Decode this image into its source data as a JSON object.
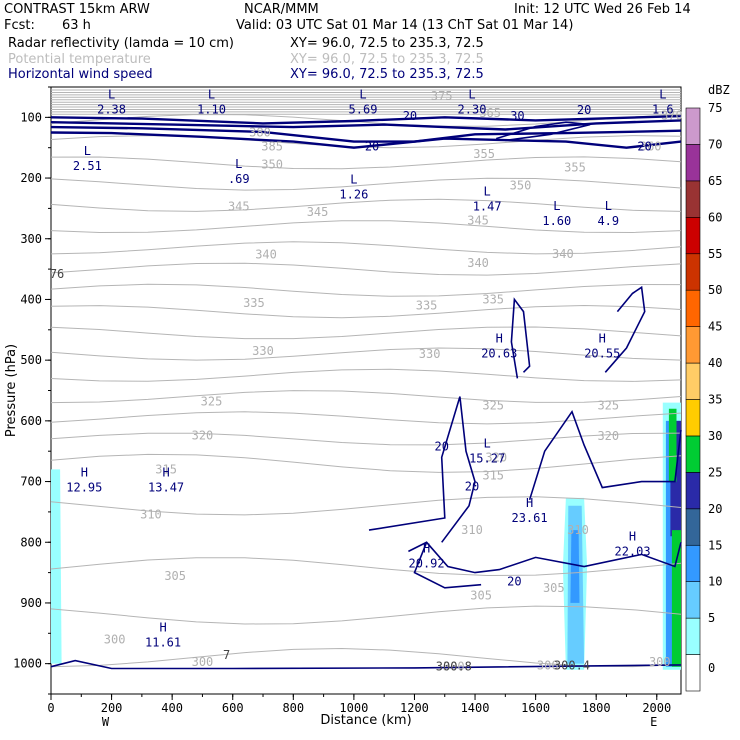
{
  "header": {
    "title": "CONTRAST 15km ARW",
    "center": "NCAR/MMM",
    "init": "Init: 12 UTC Wed 26 Feb 14",
    "fcst_label": "Fcst:",
    "fcst_value": "63 h",
    "valid": "Valid: 03 UTC Sat 01 Mar 14 (13 ChT Sat 01 Mar 14)",
    "fields": [
      {
        "name": "Radar reflectivity (lamda = 10 cm)",
        "xy": "XY=  96.0, 72.5 to 235.3, 72.5",
        "color": "#000000"
      },
      {
        "name": "Potential temperature",
        "xy": "XY=  96.0, 72.5 to 235.3, 72.5",
        "color": "#bdbdbd"
      },
      {
        "name": "Horizontal wind speed",
        "xy": "XY=  96.0, 72.5 to 235.3, 72.5",
        "color": "#00007a"
      }
    ]
  },
  "chart_data": {
    "type": "cross-section",
    "xlabel": "Distance (km)",
    "ylabel": "Pressure (hPa)",
    "xlim": [
      0,
      2080
    ],
    "ylim": [
      1050,
      50
    ],
    "x_ticks": [
      0,
      200,
      400,
      600,
      800,
      1000,
      1200,
      1400,
      1600,
      1800,
      2000
    ],
    "y_ticks": [
      100,
      200,
      300,
      400,
      500,
      600,
      700,
      800,
      900,
      1000
    ],
    "x_end_labels": {
      "left": "W",
      "right": "E"
    },
    "colorbar": {
      "unit": "dBZ",
      "levels": [
        0,
        5,
        10,
        15,
        20,
        25,
        30,
        35,
        40,
        45,
        50,
        55,
        60,
        65,
        70,
        75
      ],
      "colors": [
        "#ffffff",
        "#99ffff",
        "#66ccff",
        "#3399ff",
        "#336699",
        "#2a2aa8",
        "#00cc33",
        "#ffcc00",
        "#ffcc66",
        "#ff9933",
        "#ff6600",
        "#cc3300",
        "#cc0000",
        "#993333",
        "#993399",
        "#cc99cc"
      ]
    },
    "theta_labels": [
      {
        "v": "385",
        "x": 730,
        "p": 148
      },
      {
        "v": "350",
        "x": 730,
        "p": 178
      },
      {
        "v": "355",
        "x": 1430,
        "p": 160
      },
      {
        "v": "360",
        "x": 1980,
        "p": 148
      },
      {
        "v": "355",
        "x": 1730,
        "p": 183
      },
      {
        "v": "350",
        "x": 1550,
        "p": 212
      },
      {
        "v": "345",
        "x": 620,
        "p": 247
      },
      {
        "v": "345",
        "x": 880,
        "p": 256
      },
      {
        "v": "345",
        "x": 1410,
        "p": 270
      },
      {
        "v": "340",
        "x": 710,
        "p": 326
      },
      {
        "v": "340",
        "x": 1410,
        "p": 340
      },
      {
        "v": "340",
        "x": 1690,
        "p": 325
      },
      {
        "v": "335",
        "x": 670,
        "p": 406
      },
      {
        "v": "335",
        "x": 1240,
        "p": 410
      },
      {
        "v": "335",
        "x": 1460,
        "p": 400
      },
      {
        "v": "330",
        "x": 700,
        "p": 485
      },
      {
        "v": "330",
        "x": 1250,
        "p": 490
      },
      {
        "v": "325",
        "x": 530,
        "p": 568
      },
      {
        "v": "325",
        "x": 1460,
        "p": 575
      },
      {
        "v": "325",
        "x": 1840,
        "p": 575
      },
      {
        "v": "320",
        "x": 500,
        "p": 624
      },
      {
        "v": "320",
        "x": 1470,
        "p": 660
      },
      {
        "v": "320",
        "x": 1840,
        "p": 625
      },
      {
        "v": "315",
        "x": 380,
        "p": 680
      },
      {
        "v": "315",
        "x": 1460,
        "p": 690
      },
      {
        "v": "310",
        "x": 330,
        "p": 754
      },
      {
        "v": "310",
        "x": 1390,
        "p": 780
      },
      {
        "v": "310",
        "x": 1740,
        "p": 780
      },
      {
        "v": "305",
        "x": 410,
        "p": 856
      },
      {
        "v": "305",
        "x": 1420,
        "p": 888
      },
      {
        "v": "305",
        "x": 1660,
        "p": 875
      },
      {
        "v": "300",
        "x": 210,
        "p": 960
      },
      {
        "v": "300",
        "x": 1330,
        "p": 1005
      },
      {
        "v": "300",
        "x": 1640,
        "p": 1003
      },
      {
        "v": "300",
        "x": 2010,
        "p": 997
      },
      {
        "v": "300",
        "x": 500,
        "p": 997
      },
      {
        "v": "375",
        "x": 1290,
        "p": 65
      },
      {
        "v": "365",
        "x": 1450,
        "p": 93
      },
      {
        "v": "370",
        "x": 2050,
        "p": 97
      },
      {
        "v": "380",
        "x": 690,
        "p": 125
      }
    ],
    "wind_labels": [
      {
        "v": "20",
        "x": 1185,
        "p": 98
      },
      {
        "v": "30",
        "x": 1540,
        "p": 98
      },
      {
        "v": "20",
        "x": 1760,
        "p": 88
      },
      {
        "v": "20",
        "x": 1060,
        "p": 148
      },
      {
        "v": "20",
        "x": 1960,
        "p": 148
      },
      {
        "v": "20",
        "x": 1290,
        "p": 642
      },
      {
        "v": "20",
        "x": 1390,
        "p": 708
      },
      {
        "v": "20",
        "x": 1530,
        "p": 865
      }
    ],
    "extrema": [
      {
        "t": "L",
        "v": "2.38",
        "x": 200,
        "p": 72
      },
      {
        "t": "L",
        "v": "1.10",
        "x": 530,
        "p": 72
      },
      {
        "t": "L",
        "v": "5.69",
        "x": 1030,
        "p": 72
      },
      {
        "t": "L",
        "v": "2.30",
        "x": 1390,
        "p": 72
      },
      {
        "t": "L",
        "v": "1.6",
        "x": 2020,
        "p": 72
      },
      {
        "t": "L",
        "v": "2.51",
        "x": 120,
        "p": 165
      },
      {
        "t": "L",
        "v": ".69",
        "x": 620,
        "p": 187
      },
      {
        "t": "L",
        "v": "1.26",
        "x": 1000,
        "p": 212
      },
      {
        "t": "L",
        "v": "1.47",
        "x": 1440,
        "p": 232
      },
      {
        "t": "L",
        "v": "1.60",
        "x": 1670,
        "p": 256
      },
      {
        "t": "L",
        "v": "4.9",
        "x": 1840,
        "p": 256
      },
      {
        "t": "H",
        "v": "20.63",
        "x": 1480,
        "p": 474
      },
      {
        "t": "H",
        "v": "20.55",
        "x": 1820,
        "p": 474
      },
      {
        "t": "L",
        "v": "15.27",
        "x": 1440,
        "p": 647
      },
      {
        "t": "H",
        "v": "12.95",
        "x": 110,
        "p": 695
      },
      {
        "t": "H",
        "v": "13.47",
        "x": 380,
        "p": 695
      },
      {
        "t": "H",
        "v": "23.61",
        "x": 1580,
        "p": 745
      },
      {
        "t": "H",
        "v": "20.92",
        "x": 1240,
        "p": 820
      },
      {
        "t": "H",
        "v": "22.03",
        "x": 1920,
        "p": 800
      },
      {
        "t": "H",
        "v": "11.61",
        "x": 370,
        "p": 950
      }
    ],
    "edge_labels": [
      {
        "v": "76",
        "x": 20,
        "p": 358
      },
      {
        "v": "7",
        "x": 580,
        "p": 986
      },
      {
        "v": "300.4",
        "x": 1720,
        "p": 1003
      },
      {
        "v": "300.8",
        "x": 1330,
        "p": 1005
      }
    ]
  }
}
